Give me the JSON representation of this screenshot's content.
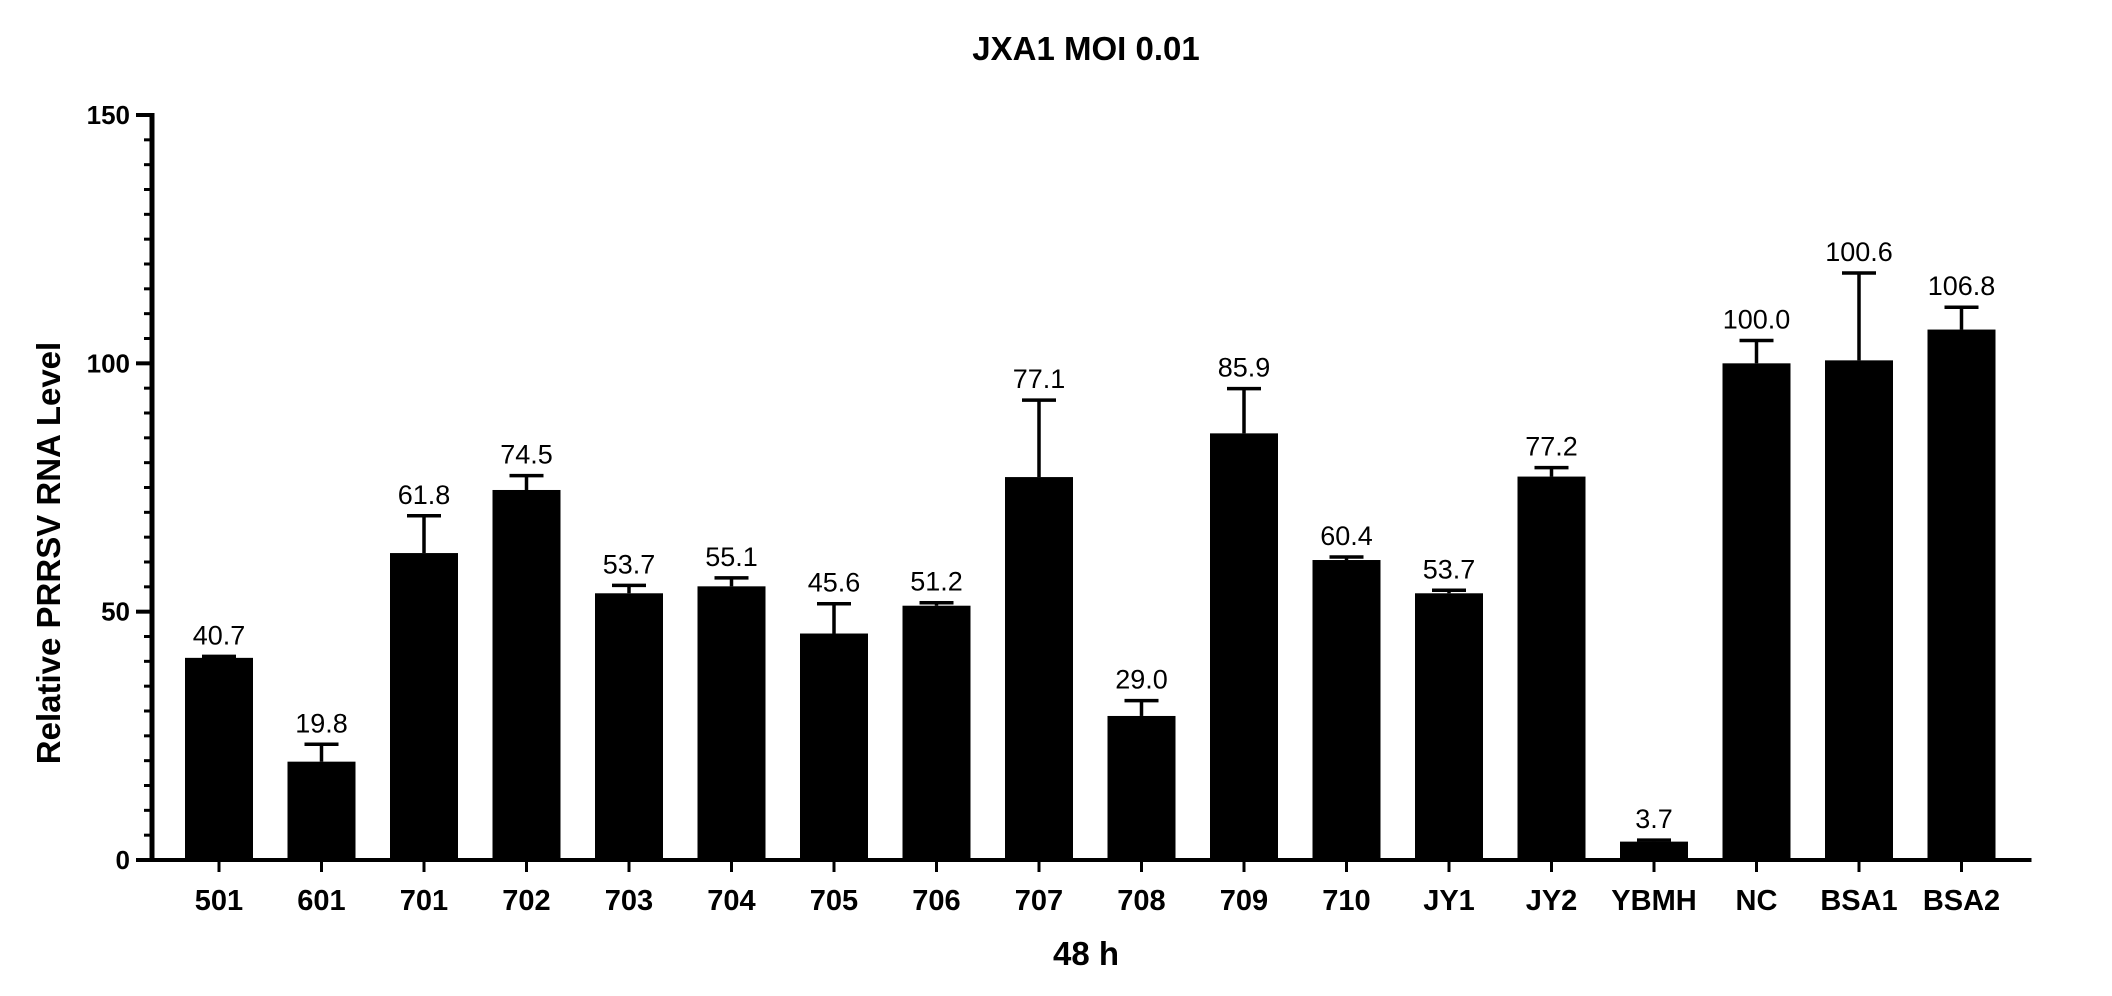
{
  "chart_data": {
    "type": "bar",
    "title": "JXA1 MOI 0.01",
    "xlabel": "48 h",
    "ylabel": "Relative PRRSV RNA Level",
    "ylim": [
      0,
      150
    ],
    "yticks": [
      0,
      50,
      100,
      150
    ],
    "ytick_labels": [
      "0",
      "50",
      "100",
      "150"
    ],
    "y_minor_step": 5,
    "categories": [
      "501",
      "601",
      "701",
      "702",
      "703",
      "704",
      "705",
      "706",
      "707",
      "708",
      "709",
      "710",
      "JY1",
      "JY2",
      "YBMH",
      "NC",
      "BSA1",
      "BSA2"
    ],
    "values": [
      40.7,
      19.8,
      61.8,
      74.5,
      53.7,
      55.1,
      45.6,
      51.2,
      77.1,
      29.0,
      85.9,
      60.4,
      53.7,
      77.2,
      3.7,
      100.0,
      100.6,
      106.8
    ],
    "error_upper": [
      41.0,
      23.3,
      69.3,
      77.4,
      55.3,
      56.8,
      51.6,
      51.8,
      92.6,
      32.1,
      94.9,
      61.0,
      54.3,
      79.0,
      4.0,
      104.6,
      118.2,
      111.3
    ],
    "data_labels": [
      "40.7",
      "19.8",
      "61.8",
      "74.5",
      "53.7",
      "55.1",
      "45.6",
      "51.2",
      "77.1",
      "29.0",
      "85.9",
      "60.4",
      "53.7",
      "77.2",
      "3.7",
      "100.0",
      "100.6",
      "106.8"
    ],
    "bar_color": "#000000",
    "grid": false,
    "legend": "none"
  }
}
